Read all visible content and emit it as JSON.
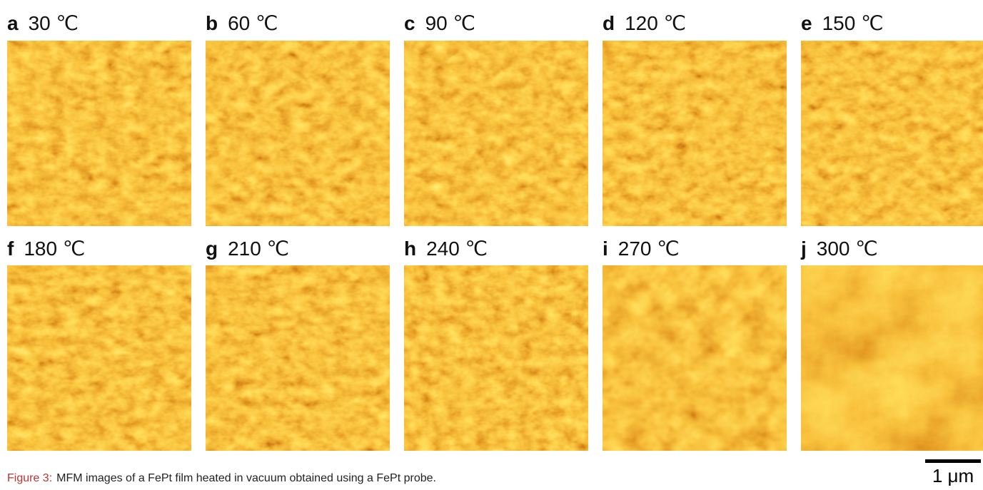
{
  "panels": [
    {
      "letter": "a",
      "label": "30 ℃"
    },
    {
      "letter": "b",
      "label": "60 ℃"
    },
    {
      "letter": "c",
      "label": "90 ℃"
    },
    {
      "letter": "d",
      "label": "120 ℃"
    },
    {
      "letter": "e",
      "label": "150 ℃"
    },
    {
      "letter": "f",
      "label": "180 ℃"
    },
    {
      "letter": "g",
      "label": "210 ℃"
    },
    {
      "letter": "h",
      "label": "240 ℃"
    },
    {
      "letter": "i",
      "label": "270 ℃"
    },
    {
      "letter": "j",
      "label": "300 ℃"
    }
  ],
  "caption": {
    "label": "Figure 3:",
    "text": "MFM images of a FePt film heated in vacuum obtained using a FePt probe."
  },
  "scale_bar": "1 μm"
}
